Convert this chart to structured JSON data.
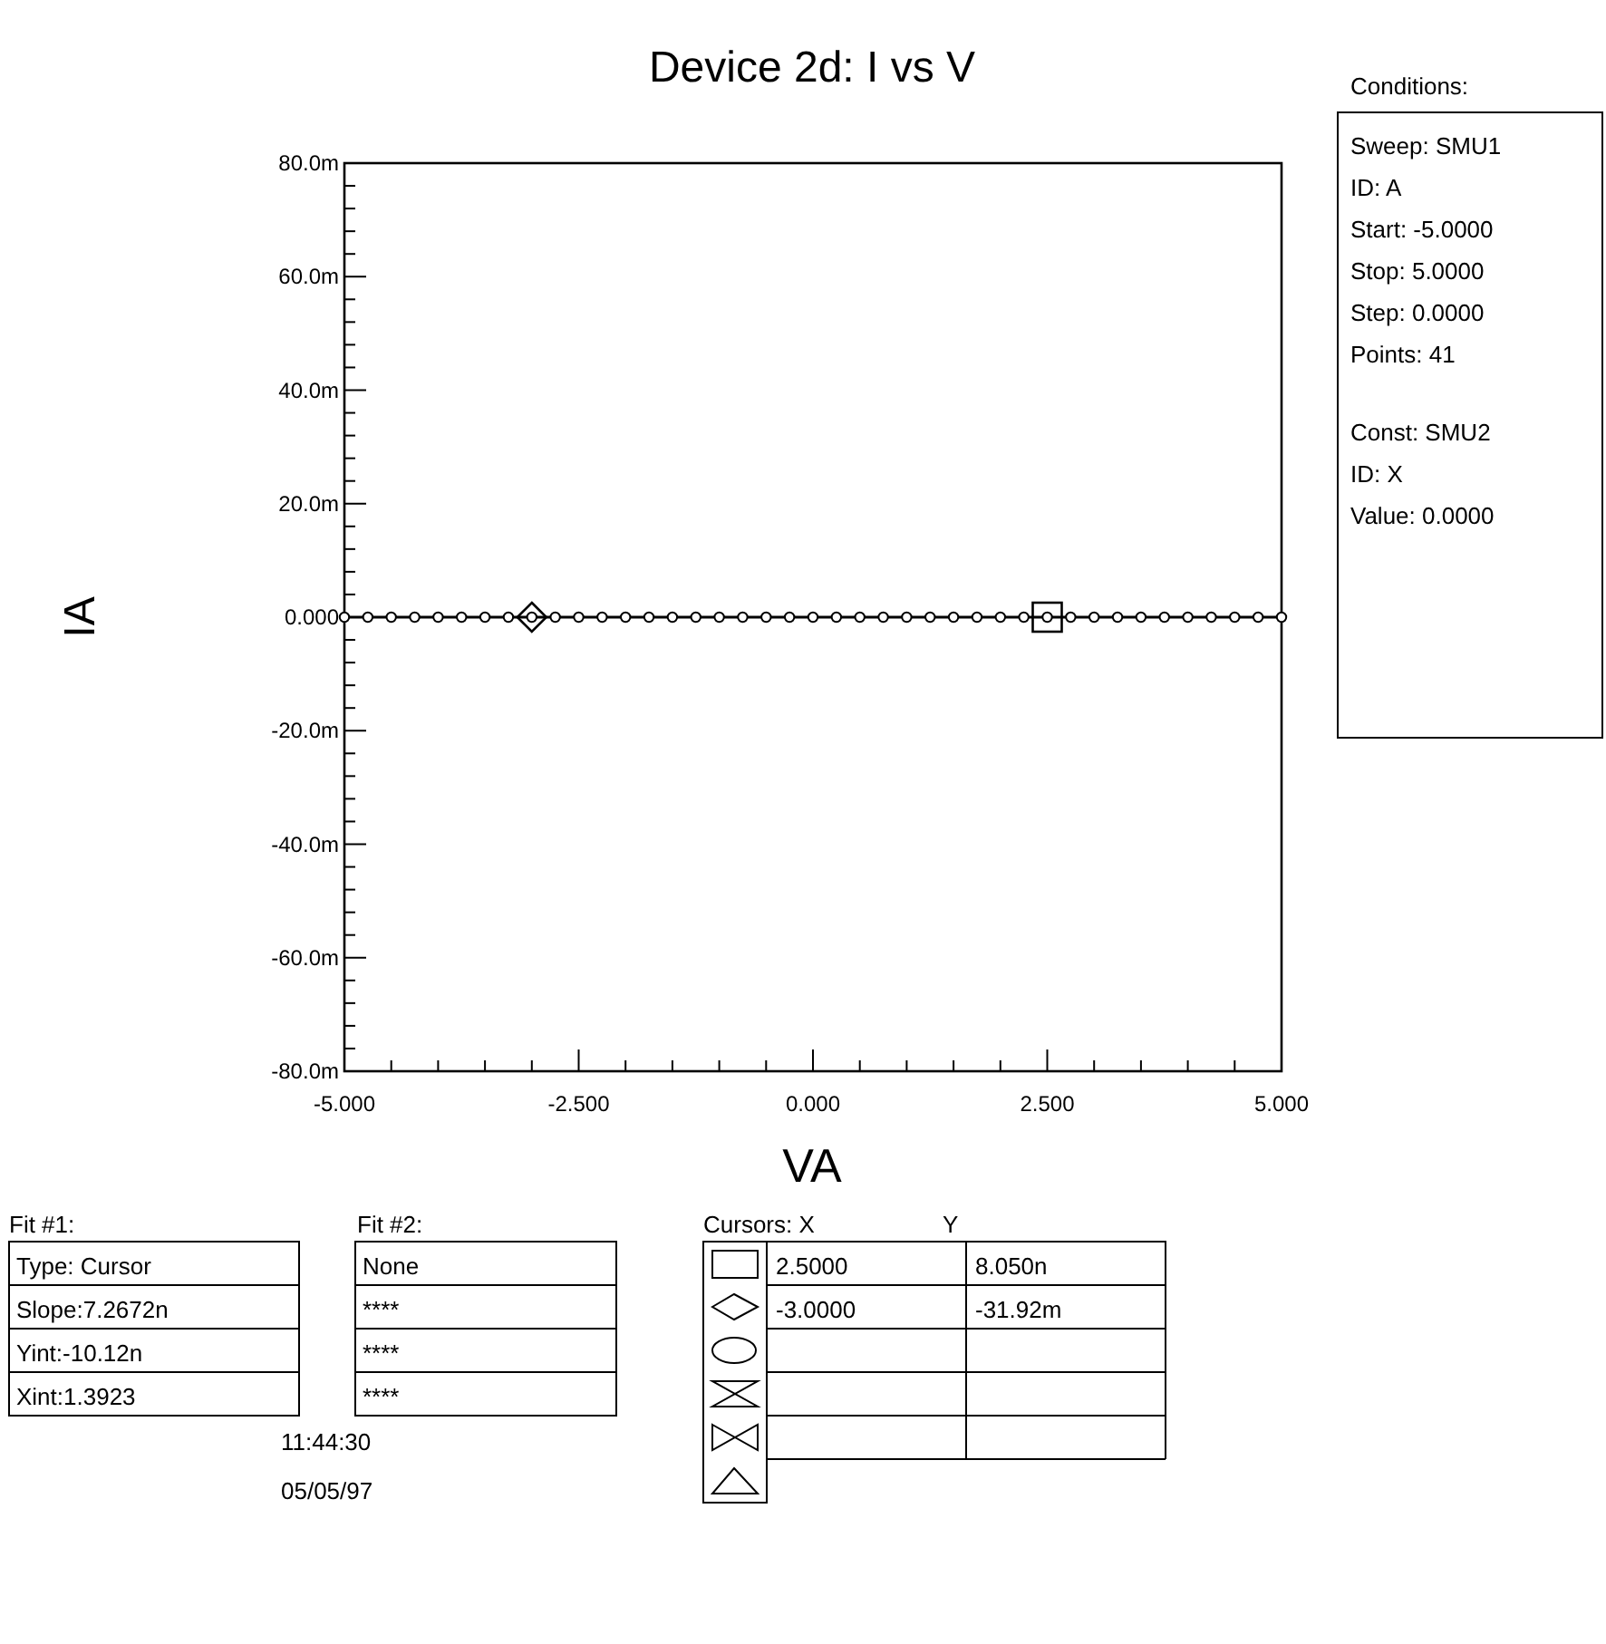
{
  "chart_data": {
    "type": "line",
    "title": "Device 2d: I vs V",
    "xlabel": "VA",
    "ylabel": "IA",
    "xlim": [
      -5,
      5
    ],
    "ylim": [
      -80,
      80
    ],
    "xticks": [
      {
        "value": -5,
        "label": "-5.000"
      },
      {
        "value": -4.5,
        "label": null
      },
      {
        "value": -4,
        "label": null
      },
      {
        "value": -3.5,
        "label": null
      },
      {
        "value": -3,
        "label": null
      },
      {
        "value": -2.5,
        "label": "-2.500"
      },
      {
        "value": -2,
        "label": null
      },
      {
        "value": -1.5,
        "label": null
      },
      {
        "value": -1,
        "label": null
      },
      {
        "value": -0.5,
        "label": null
      },
      {
        "value": 0,
        "label": "0.000"
      },
      {
        "value": 0.5,
        "label": null
      },
      {
        "value": 1,
        "label": null
      },
      {
        "value": 1.5,
        "label": null
      },
      {
        "value": 2,
        "label": null
      },
      {
        "value": 2.5,
        "label": "2.500"
      },
      {
        "value": 3,
        "label": null
      },
      {
        "value": 3.5,
        "label": null
      },
      {
        "value": 4,
        "label": null
      },
      {
        "value": 4.5,
        "label": null
      },
      {
        "value": 5,
        "label": "5.000"
      }
    ],
    "yticks": [
      {
        "value": -80,
        "label": "-80.0m"
      },
      {
        "value": -76,
        "label": null
      },
      {
        "value": -72,
        "label": null
      },
      {
        "value": -68,
        "label": null
      },
      {
        "value": -64,
        "label": null
      },
      {
        "value": -60,
        "label": "-60.0m"
      },
      {
        "value": -56,
        "label": null
      },
      {
        "value": -52,
        "label": null
      },
      {
        "value": -48,
        "label": null
      },
      {
        "value": -44,
        "label": null
      },
      {
        "value": -40,
        "label": "-40.0m"
      },
      {
        "value": -36,
        "label": null
      },
      {
        "value": -32,
        "label": null
      },
      {
        "value": -28,
        "label": null
      },
      {
        "value": -24,
        "label": null
      },
      {
        "value": -20,
        "label": "-20.0m"
      },
      {
        "value": -16,
        "label": null
      },
      {
        "value": -12,
        "label": null
      },
      {
        "value": -8,
        "label": null
      },
      {
        "value": -4,
        "label": null
      },
      {
        "value": 0,
        "label": "0.000"
      },
      {
        "value": 4,
        "label": null
      },
      {
        "value": 8,
        "label": null
      },
      {
        "value": 12,
        "label": null
      },
      {
        "value": 16,
        "label": null
      },
      {
        "value": 20,
        "label": "20.0m"
      },
      {
        "value": 24,
        "label": null
      },
      {
        "value": 28,
        "label": null
      },
      {
        "value": 32,
        "label": null
      },
      {
        "value": 36,
        "label": null
      },
      {
        "value": 40,
        "label": "40.0m"
      },
      {
        "value": 44,
        "label": null
      },
      {
        "value": 48,
        "label": null
      },
      {
        "value": 52,
        "label": null
      },
      {
        "value": 56,
        "label": null
      },
      {
        "value": 60,
        "label": "60.0m"
      },
      {
        "value": 64,
        "label": null
      },
      {
        "value": 68,
        "label": null
      },
      {
        "value": 72,
        "label": null
      },
      {
        "value": 76,
        "label": null
      },
      {
        "value": 80,
        "label": "80.0m"
      }
    ],
    "series": [
      {
        "type": "line",
        "color": "#000000",
        "marker": "circle",
        "line_style": "solid",
        "x": [
          -5,
          -4.75,
          -4.5,
          -4.25,
          -4,
          -3.75,
          -3.5,
          -3.25,
          -3,
          -2.75,
          -2.5,
          -2.25,
          -2,
          -1.75,
          -1.5,
          -1.25,
          -1,
          -0.75,
          -0.5,
          -0.25,
          0,
          0.25,
          0.5,
          0.75,
          1,
          1.25,
          1.5,
          1.75,
          2,
          2.25,
          2.5,
          2.75,
          3,
          3.25,
          3.5,
          3.75,
          4,
          4.25,
          4.5,
          4.75,
          5
        ],
        "values": [
          0,
          0,
          0,
          0,
          0,
          0,
          0,
          0,
          0,
          0,
          0,
          0,
          0,
          0,
          0,
          0,
          0,
          0,
          0,
          0,
          0,
          0,
          0,
          0,
          0,
          0,
          0,
          0,
          0,
          0,
          0,
          0,
          0,
          0,
          0,
          0,
          0,
          0,
          0,
          0,
          0
        ]
      },
      {
        "type": "scatter",
        "color": "#000000",
        "marker": "square",
        "x": [
          2.5
        ],
        "values": [
          0
        ]
      },
      {
        "type": "scatter",
        "color": "#000000",
        "marker": "diamond",
        "x": [
          -3
        ],
        "values": [
          0
        ]
      }
    ],
    "annotations": [
      "Conditions:",
      "Sweep: SMU1",
      "ID: A",
      "Start: -5.0000",
      "Stop: 5.0000",
      "Step: 0.0000",
      "Points: 41",
      "Const: SMU2",
      "ID: X",
      "Value: 0.0000",
      "Fit #1:",
      "Type: Cursor",
      "Slope:7.2672n",
      "Yint:-10.12n",
      "Xint:1.3923",
      "Fit #2:",
      "None",
      "****",
      "****",
      "****",
      "Cursors: X",
      "Y",
      "2.5000",
      "8.050n",
      "-3.0000",
      "-31.92m",
      "11:44:30",
      "05/05/97"
    ]
  }
}
